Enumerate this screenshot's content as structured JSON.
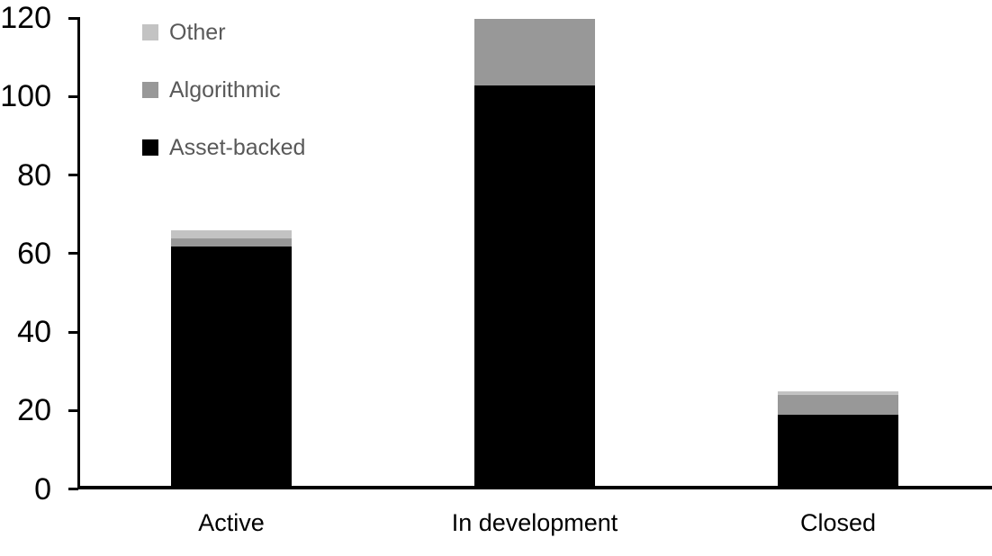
{
  "chart_data": {
    "type": "bar",
    "stacked": true,
    "title": "",
    "xlabel": "",
    "ylabel": "",
    "categories": [
      "Active",
      "In development",
      "Closed"
    ],
    "series": [
      {
        "name": "Asset-backed",
        "color": "#000000",
        "values": [
          62,
          103,
          19
        ]
      },
      {
        "name": "Algorithmic",
        "color": "#989898",
        "values": [
          2,
          17,
          5
        ]
      },
      {
        "name": "Other",
        "color": "#c3c3c3",
        "values": [
          2,
          0,
          1
        ]
      }
    ],
    "totals": [
      66,
      120,
      25
    ],
    "yticks": [
      0,
      20,
      40,
      60,
      80,
      100,
      120
    ],
    "ylim": [
      0,
      120
    ],
    "grid": false,
    "legend_position": "top-left",
    "legend_order": [
      "Other",
      "Algorithmic",
      "Asset-backed"
    ],
    "axis_color": "#000000",
    "tick_label_color": "#000000",
    "legend_text_color": "#595959",
    "background_color": "#ffffff"
  }
}
